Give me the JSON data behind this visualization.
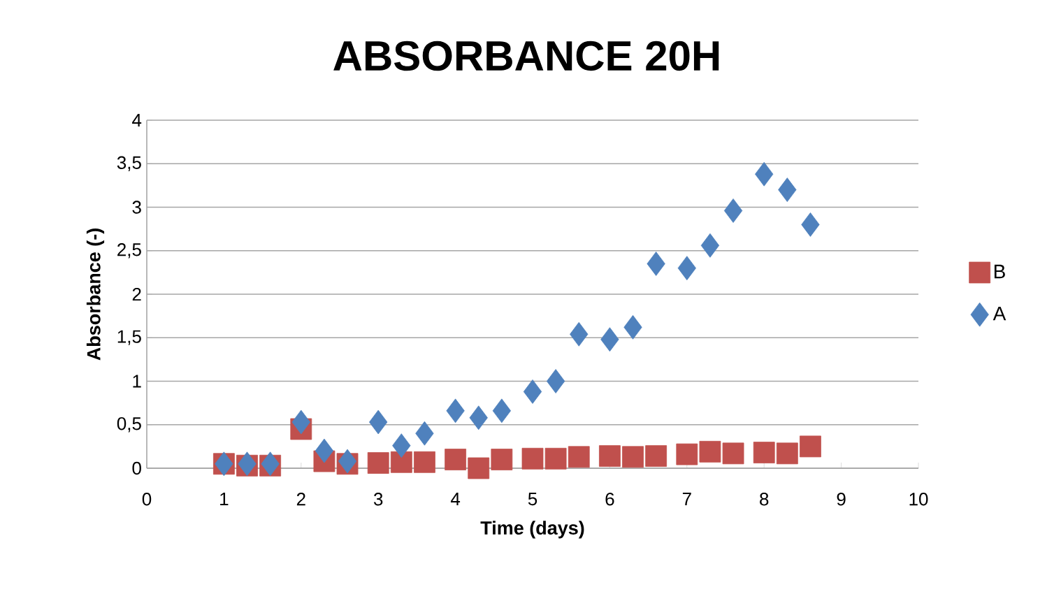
{
  "chart_data": {
    "type": "scatter",
    "title": "ABSORBANCE 20H",
    "xlabel": "Time (days)",
    "ylabel": "Absorbance (-)",
    "xlim": [
      0,
      10
    ],
    "xticks": [
      0,
      1,
      2,
      3,
      4,
      5,
      6,
      7,
      8,
      9,
      10
    ],
    "ylim": [
      0,
      4
    ],
    "yticks": [
      0,
      {
        "value": 0.5,
        "label": "0,5"
      },
      1,
      {
        "value": 1.5,
        "label": "1,5"
      },
      2,
      {
        "value": 2.5,
        "label": "2,5"
      },
      3,
      {
        "value": 3.5,
        "label": "3,5"
      },
      4
    ],
    "grid": "y",
    "legend": "right",
    "series": [
      {
        "name": "B",
        "color": "#c0504d",
        "marker": "square",
        "x": [
          1,
          1.3,
          1.6,
          2,
          2.3,
          2.6,
          3,
          3.3,
          3.6,
          4,
          4.3,
          4.6,
          5,
          5.3,
          5.6,
          6,
          6.3,
          6.6,
          7,
          7.3,
          7.6,
          8,
          8.3,
          8.6
        ],
        "values": [
          0.05,
          0.03,
          0.03,
          0.45,
          0.08,
          0.05,
          0.06,
          0.07,
          0.07,
          0.1,
          0.0,
          0.1,
          0.11,
          0.11,
          0.13,
          0.14,
          0.13,
          0.14,
          0.16,
          0.19,
          0.17,
          0.18,
          0.17,
          0.25
        ]
      },
      {
        "name": "A",
        "color": "#4f81bd",
        "marker": "diamond",
        "x": [
          1,
          1.3,
          1.6,
          2,
          2.3,
          2.6,
          3,
          3.3,
          3.6,
          4,
          4.3,
          4.6,
          5,
          5.3,
          5.6,
          6,
          6.3,
          6.6,
          7,
          7.3,
          7.6,
          8,
          8.3,
          8.6
        ],
        "values": [
          0.05,
          0.05,
          0.05,
          0.53,
          0.2,
          0.08,
          0.53,
          0.26,
          0.4,
          0.66,
          0.58,
          0.66,
          0.88,
          1.0,
          1.54,
          1.48,
          1.62,
          2.35,
          2.3,
          2.56,
          2.96,
          3.38,
          3.2,
          2.8
        ]
      }
    ]
  }
}
